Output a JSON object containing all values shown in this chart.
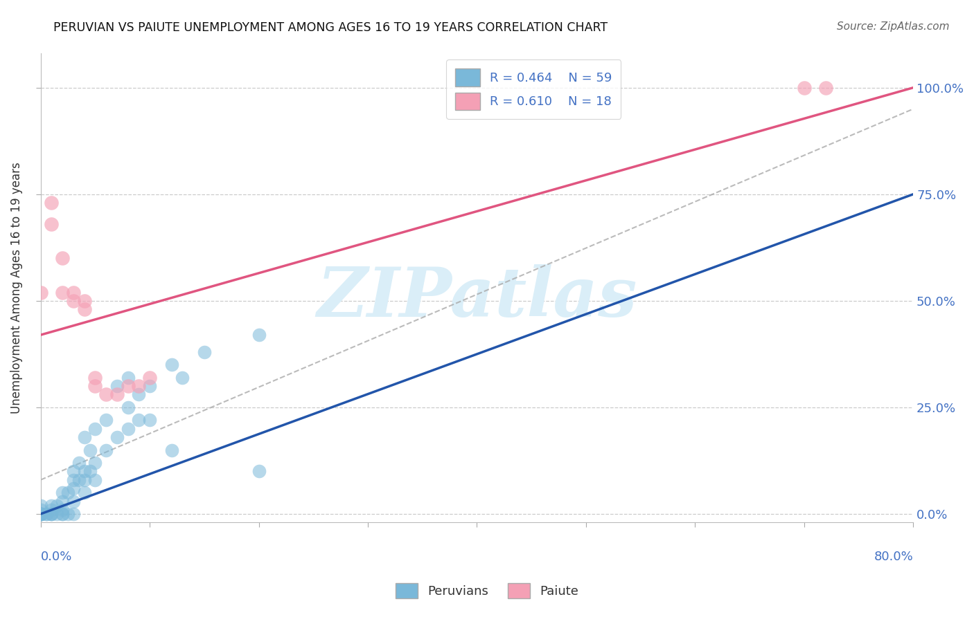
{
  "title": "PERUVIAN VS PAIUTE UNEMPLOYMENT AMONG AGES 16 TO 19 YEARS CORRELATION CHART",
  "source": "Source: ZipAtlas.com",
  "ylabel": "Unemployment Among Ages 16 to 19 years",
  "xlim": [
    0.0,
    0.8
  ],
  "ylim": [
    -0.02,
    1.08
  ],
  "xticks": [
    0.0,
    0.1,
    0.2,
    0.3,
    0.4,
    0.5,
    0.6,
    0.7,
    0.8
  ],
  "yticks": [
    0.0,
    0.25,
    0.5,
    0.75,
    1.0
  ],
  "ytick_labels": [
    "0.0%",
    "25.0%",
    "50.0%",
    "75.0%",
    "100.0%"
  ],
  "legend_R1": "R = 0.464",
  "legend_N1": "N = 59",
  "legend_R2": "R = 0.610",
  "legend_N2": "N = 18",
  "blue_color": "#7ab8d9",
  "pink_color": "#f4a0b5",
  "blue_line_color": "#2255aa",
  "pink_line_color": "#e05580",
  "watermark": "ZIPatlas",
  "watermark_color": "#daeef8",
  "blue_scatter": [
    [
      0.0,
      0.0
    ],
    [
      0.0,
      0.0
    ],
    [
      0.0,
      0.0
    ],
    [
      0.0,
      0.0
    ],
    [
      0.0,
      0.0
    ],
    [
      0.0,
      0.0
    ],
    [
      0.0,
      0.01
    ],
    [
      0.0,
      0.0
    ],
    [
      0.0,
      0.02
    ],
    [
      0.0,
      0.0
    ],
    [
      0.005,
      0.0
    ],
    [
      0.005,
      0.0
    ],
    [
      0.01,
      0.0
    ],
    [
      0.01,
      0.01
    ],
    [
      0.01,
      0.02
    ],
    [
      0.01,
      0.0
    ],
    [
      0.01,
      0.0
    ],
    [
      0.015,
      0.02
    ],
    [
      0.015,
      0.0
    ],
    [
      0.02,
      0.0
    ],
    [
      0.02,
      0.0
    ],
    [
      0.02,
      0.01
    ],
    [
      0.02,
      0.03
    ],
    [
      0.02,
      0.05
    ],
    [
      0.025,
      0.05
    ],
    [
      0.025,
      0.0
    ],
    [
      0.03,
      0.0
    ],
    [
      0.03,
      0.03
    ],
    [
      0.03,
      0.06
    ],
    [
      0.03,
      0.08
    ],
    [
      0.03,
      0.1
    ],
    [
      0.035,
      0.08
    ],
    [
      0.035,
      0.12
    ],
    [
      0.04,
      0.05
    ],
    [
      0.04,
      0.08
    ],
    [
      0.04,
      0.1
    ],
    [
      0.04,
      0.18
    ],
    [
      0.045,
      0.1
    ],
    [
      0.045,
      0.15
    ],
    [
      0.05,
      0.08
    ],
    [
      0.05,
      0.12
    ],
    [
      0.05,
      0.2
    ],
    [
      0.06,
      0.15
    ],
    [
      0.06,
      0.22
    ],
    [
      0.07,
      0.18
    ],
    [
      0.07,
      0.3
    ],
    [
      0.08,
      0.2
    ],
    [
      0.08,
      0.25
    ],
    [
      0.08,
      0.32
    ],
    [
      0.09,
      0.22
    ],
    [
      0.09,
      0.28
    ],
    [
      0.1,
      0.3
    ],
    [
      0.1,
      0.22
    ],
    [
      0.12,
      0.15
    ],
    [
      0.12,
      0.35
    ],
    [
      0.13,
      0.32
    ],
    [
      0.15,
      0.38
    ],
    [
      0.2,
      0.1
    ],
    [
      0.2,
      0.42
    ]
  ],
  "pink_scatter": [
    [
      0.0,
      0.52
    ],
    [
      0.01,
      0.68
    ],
    [
      0.01,
      0.73
    ],
    [
      0.02,
      0.52
    ],
    [
      0.02,
      0.6
    ],
    [
      0.03,
      0.5
    ],
    [
      0.03,
      0.52
    ],
    [
      0.04,
      0.48
    ],
    [
      0.04,
      0.5
    ],
    [
      0.05,
      0.3
    ],
    [
      0.05,
      0.32
    ],
    [
      0.06,
      0.28
    ],
    [
      0.07,
      0.28
    ],
    [
      0.08,
      0.3
    ],
    [
      0.09,
      0.3
    ],
    [
      0.1,
      0.32
    ],
    [
      0.7,
      1.0
    ],
    [
      0.72,
      1.0
    ]
  ],
  "blue_trend_x": [
    0.0,
    0.8
  ],
  "blue_trend_y": [
    0.0,
    0.75
  ],
  "pink_trend_x": [
    0.0,
    0.8
  ],
  "pink_trend_y": [
    0.42,
    1.0
  ],
  "ref_line_x": [
    0.0,
    0.8
  ],
  "ref_line_y": [
    0.08,
    0.95
  ]
}
